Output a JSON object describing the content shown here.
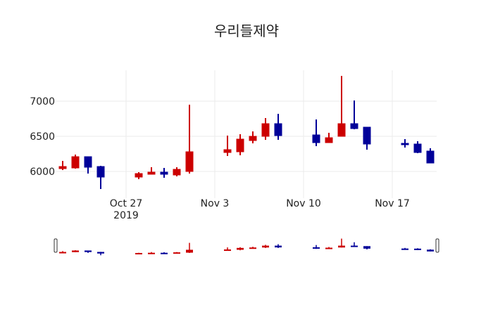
{
  "title": "우리들제약",
  "colors": {
    "increasing": "#cc0000",
    "decreasing": "#000099",
    "grid": "#ebebeb",
    "background": "#ffffff",
    "slider_handle": "#333333"
  },
  "chart_data": {
    "type": "candlestick",
    "title": "우리들제약",
    "xlabel": "",
    "ylabel": "",
    "ylim": [
      5700,
      7400
    ],
    "yticks": [
      6000,
      6500,
      7000
    ],
    "xticks": [
      {
        "date": "2019-10-27",
        "label": "Oct 27",
        "sublabel": "2019"
      },
      {
        "date": "2019-11-03",
        "label": "Nov 3",
        "sublabel": ""
      },
      {
        "date": "2019-11-10",
        "label": "Nov 10",
        "sublabel": ""
      },
      {
        "date": "2019-11-17",
        "label": "Nov 17",
        "sublabel": ""
      }
    ],
    "xrange": [
      "2019-10-21T12:00",
      "2019-11-20T12:00"
    ],
    "grid": true,
    "rangeslider": true,
    "series": [
      {
        "date": "2019-10-22",
        "open": 6040,
        "high": 6150,
        "low": 6020,
        "close": 6070
      },
      {
        "date": "2019-10-23",
        "open": 6050,
        "high": 6240,
        "low": 6040,
        "close": 6210
      },
      {
        "date": "2019-10-24",
        "open": 6210,
        "high": 6210,
        "low": 5970,
        "close": 6060
      },
      {
        "date": "2019-10-25",
        "open": 6070,
        "high": 6080,
        "low": 5750,
        "close": 5920
      },
      {
        "date": "2019-10-28",
        "open": 5920,
        "high": 5990,
        "low": 5890,
        "close": 5970
      },
      {
        "date": "2019-10-29",
        "open": 5960,
        "high": 6060,
        "low": 5960,
        "close": 5990
      },
      {
        "date": "2019-10-30",
        "open": 5990,
        "high": 6050,
        "low": 5910,
        "close": 5960
      },
      {
        "date": "2019-10-31",
        "open": 5950,
        "high": 6060,
        "low": 5930,
        "close": 6030
      },
      {
        "date": "2019-11-01",
        "open": 6000,
        "high": 6950,
        "low": 5970,
        "close": 6280
      },
      {
        "date": "2019-11-04",
        "open": 6270,
        "high": 6510,
        "low": 6220,
        "close": 6310
      },
      {
        "date": "2019-11-05",
        "open": 6280,
        "high": 6530,
        "low": 6230,
        "close": 6460
      },
      {
        "date": "2019-11-06",
        "open": 6440,
        "high": 6570,
        "low": 6400,
        "close": 6500
      },
      {
        "date": "2019-11-07",
        "open": 6500,
        "high": 6760,
        "low": 6450,
        "close": 6680
      },
      {
        "date": "2019-11-08",
        "open": 6680,
        "high": 6820,
        "low": 6450,
        "close": 6510
      },
      {
        "date": "2019-11-11",
        "open": 6520,
        "high": 6740,
        "low": 6360,
        "close": 6410
      },
      {
        "date": "2019-11-12",
        "open": 6410,
        "high": 6550,
        "low": 6410,
        "close": 6480
      },
      {
        "date": "2019-11-13",
        "open": 6500,
        "high": 7360,
        "low": 6500,
        "close": 6680
      },
      {
        "date": "2019-11-14",
        "open": 6680,
        "high": 7010,
        "low": 6600,
        "close": 6610
      },
      {
        "date": "2019-11-15",
        "open": 6630,
        "high": 6630,
        "low": 6310,
        "close": 6390
      },
      {
        "date": "2019-11-18",
        "open": 6400,
        "high": 6460,
        "low": 6340,
        "close": 6380
      },
      {
        "date": "2019-11-19",
        "open": 6390,
        "high": 6430,
        "low": 6260,
        "close": 6270
      },
      {
        "date": "2019-11-20",
        "open": 6290,
        "high": 6330,
        "low": 6120,
        "close": 6120
      }
    ]
  }
}
